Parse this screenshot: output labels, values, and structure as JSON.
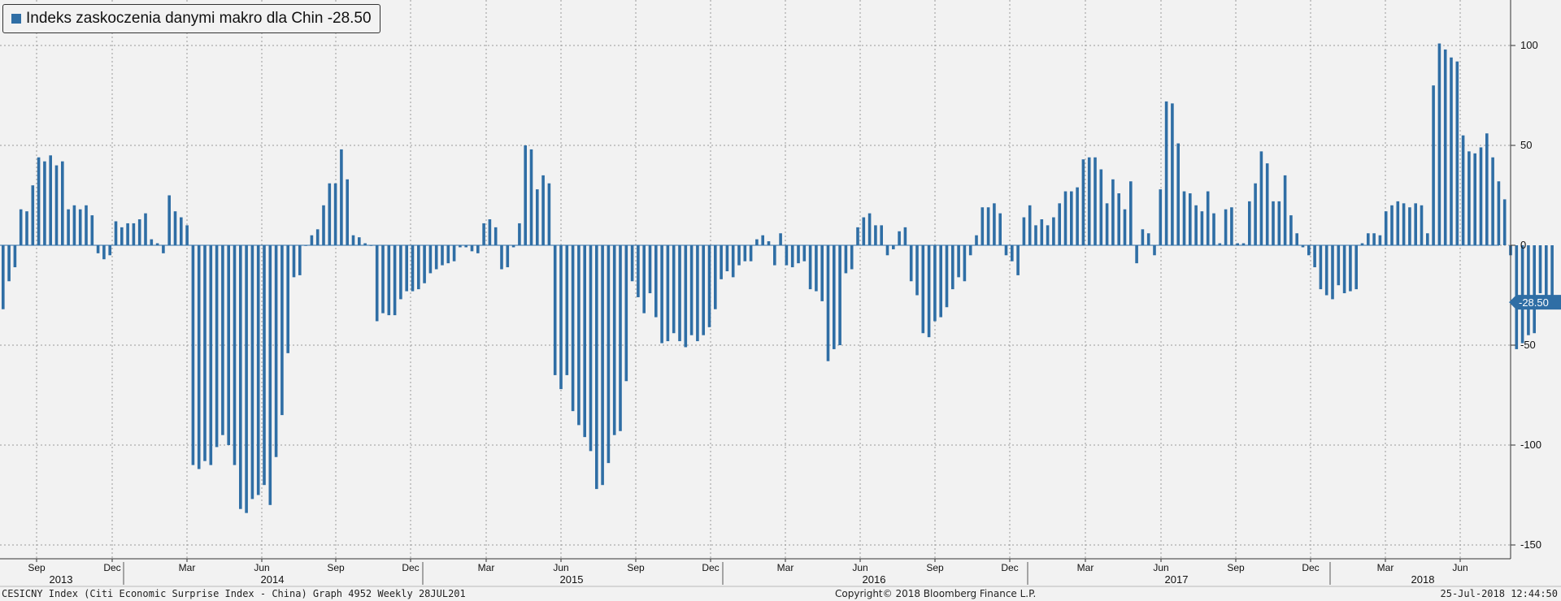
{
  "legend": {
    "label": "Indeks zaskoczenia danymi makro dla Chin",
    "last_value": "-28.50",
    "color": "#2f6ea5"
  },
  "footer": {
    "left": "CESICNY Index (Citi Economic Surprise Index - China) Graph 4952  Weekly 28JUL201",
    "center": "Copyright© 2018 Bloomberg Finance L.P.",
    "right": "25-Jul-2018 12:44:50"
  },
  "chart_data": {
    "type": "bar",
    "ylim": [
      -155,
      120
    ],
    "yticks": [
      100,
      50,
      0,
      -50,
      -100,
      -150
    ],
    "grid": true,
    "axis_side": "right",
    "last_value_label": "-28.50",
    "month_ticks": [
      "Sep",
      "Dec",
      "Mar",
      "Jun",
      "Sep",
      "Dec",
      "Mar",
      "Jun",
      "Sep",
      "Dec",
      "Mar",
      "Jun",
      "Sep",
      "Dec",
      "Mar",
      "Jun",
      "Sep",
      "Dec",
      "Mar",
      "Jun"
    ],
    "year_labels": [
      "2013",
      "2014",
      "2015",
      "2016",
      "2017",
      "2018"
    ],
    "series": [
      {
        "color": "#2f6ea5",
        "values": [
          -32,
          -18,
          -11,
          18,
          17,
          30,
          44,
          42,
          45,
          40,
          42,
          18,
          20,
          18,
          20,
          15,
          -4,
          -7,
          -5,
          12,
          9,
          11,
          11,
          13,
          16,
          3,
          1,
          -4,
          25,
          17,
          14,
          10,
          -110,
          -112,
          -108,
          -110,
          -101,
          -95,
          -100,
          -110,
          -132,
          -134,
          -127,
          -125,
          -120,
          -130,
          -106,
          -85,
          -54,
          -16,
          -15,
          0,
          5,
          8,
          20,
          31,
          31,
          48,
          33,
          5,
          4,
          1,
          0,
          -38,
          -34,
          -35,
          -35,
          -27,
          -23,
          -23,
          -22,
          -19,
          -14,
          -12,
          -10,
          -9,
          -8,
          -1,
          -1,
          -3,
          -4,
          11,
          13,
          9,
          -12,
          -11,
          -1,
          11,
          50,
          48,
          28,
          35,
          31,
          -65,
          -72,
          -65,
          -83,
          -90,
          -96,
          -103,
          -122,
          -120,
          -109,
          -95,
          -93,
          -68,
          -18,
          -26,
          -34,
          -24,
          -36,
          -49,
          -48,
          -44,
          -48,
          -51,
          -45,
          -48,
          -45,
          -41,
          -32,
          -17,
          -13,
          -16,
          -10,
          -8,
          -8,
          3,
          5,
          2,
          -10,
          6,
          -10,
          -11,
          -9,
          -8,
          -22,
          -23,
          -28,
          -58,
          -52,
          -50,
          -14,
          -12,
          9,
          14,
          16,
          10,
          10,
          -5,
          -2,
          7,
          9,
          -18,
          -25,
          -44,
          -46,
          -38,
          -36,
          -31,
          -22,
          -16,
          -18,
          -5,
          5,
          19,
          19,
          21,
          16,
          -5,
          -8,
          -15,
          14,
          20,
          10,
          13,
          10,
          14,
          21,
          27,
          27,
          29,
          43,
          44,
          44,
          38,
          21,
          33,
          26,
          18,
          32,
          -9,
          8,
          6,
          -5,
          28,
          72,
          71,
          51,
          27,
          26,
          20,
          17,
          27,
          16,
          1,
          18,
          19,
          1,
          1,
          22,
          31,
          47,
          41,
          22,
          22,
          35,
          15,
          6,
          -1,
          -5,
          -11,
          -22,
          -25,
          -27,
          -20,
          -24,
          -23,
          -22,
          1,
          6,
          6,
          5,
          17,
          20,
          22,
          21,
          19,
          21,
          20,
          6,
          80,
          101,
          98,
          94,
          92,
          55,
          47,
          46,
          49,
          56,
          44,
          32,
          23,
          -5,
          -52,
          -49,
          -45,
          -44,
          -24,
          -28,
          -28.5
        ]
      }
    ]
  }
}
